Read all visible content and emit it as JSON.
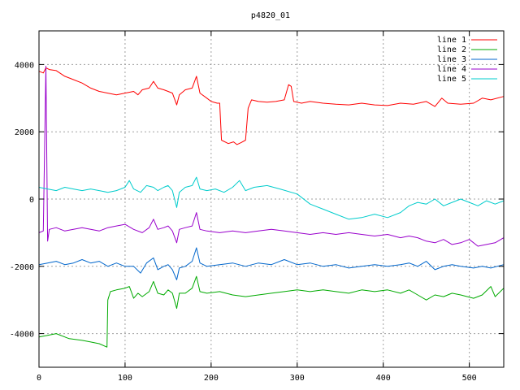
{
  "chart_data": {
    "type": "line",
    "title": "p4820_01",
    "xlabel": "",
    "ylabel": "",
    "xlim": [
      0,
      540
    ],
    "ylim": [
      -5000,
      5000
    ],
    "x_ticks": [
      0,
      100,
      200,
      300,
      400,
      500
    ],
    "y_ticks": [
      -4000,
      -2000,
      0,
      2000,
      4000
    ],
    "grid": true,
    "legend_position": "top-right",
    "series": [
      {
        "name": "line 1",
        "color": "#ff0000",
        "points": [
          [
            0,
            3800
          ],
          [
            5,
            3750
          ],
          [
            8,
            3900
          ],
          [
            12,
            3850
          ],
          [
            20,
            3820
          ],
          [
            30,
            3650
          ],
          [
            40,
            3550
          ],
          [
            50,
            3450
          ],
          [
            60,
            3300
          ],
          [
            70,
            3200
          ],
          [
            80,
            3150
          ],
          [
            90,
            3100
          ],
          [
            100,
            3150
          ],
          [
            110,
            3200
          ],
          [
            115,
            3100
          ],
          [
            120,
            3250
          ],
          [
            128,
            3300
          ],
          [
            133,
            3500
          ],
          [
            138,
            3300
          ],
          [
            145,
            3250
          ],
          [
            150,
            3200
          ],
          [
            155,
            3150
          ],
          [
            160,
            2800
          ],
          [
            163,
            3100
          ],
          [
            170,
            3250
          ],
          [
            178,
            3300
          ],
          [
            183,
            3650
          ],
          [
            187,
            3150
          ],
          [
            195,
            3000
          ],
          [
            200,
            2900
          ],
          [
            207,
            2850
          ],
          [
            210,
            2850
          ],
          [
            212,
            1750
          ],
          [
            220,
            1650
          ],
          [
            226,
            1700
          ],
          [
            230,
            1620
          ],
          [
            235,
            1680
          ],
          [
            240,
            1750
          ],
          [
            243,
            2700
          ],
          [
            247,
            2950
          ],
          [
            255,
            2900
          ],
          [
            265,
            2880
          ],
          [
            275,
            2900
          ],
          [
            285,
            2950
          ],
          [
            290,
            3400
          ],
          [
            293,
            3350
          ],
          [
            296,
            2900
          ],
          [
            305,
            2850
          ],
          [
            315,
            2900
          ],
          [
            330,
            2850
          ],
          [
            345,
            2820
          ],
          [
            360,
            2800
          ],
          [
            375,
            2850
          ],
          [
            390,
            2800
          ],
          [
            405,
            2780
          ],
          [
            420,
            2850
          ],
          [
            435,
            2820
          ],
          [
            450,
            2900
          ],
          [
            460,
            2750
          ],
          [
            468,
            3000
          ],
          [
            475,
            2850
          ],
          [
            490,
            2820
          ],
          [
            505,
            2850
          ],
          [
            515,
            3000
          ],
          [
            525,
            2950
          ],
          [
            540,
            3050
          ]
        ]
      },
      {
        "name": "line 2",
        "color": "#00aa00",
        "points": [
          [
            0,
            -4100
          ],
          [
            10,
            -4050
          ],
          [
            20,
            -4000
          ],
          [
            35,
            -4150
          ],
          [
            50,
            -4200
          ],
          [
            60,
            -4250
          ],
          [
            70,
            -4300
          ],
          [
            79,
            -4400
          ],
          [
            80,
            -3000
          ],
          [
            83,
            -2750
          ],
          [
            90,
            -2700
          ],
          [
            100,
            -2650
          ],
          [
            105,
            -2600
          ],
          [
            110,
            -2950
          ],
          [
            115,
            -2800
          ],
          [
            120,
            -2900
          ],
          [
            128,
            -2750
          ],
          [
            133,
            -2450
          ],
          [
            138,
            -2800
          ],
          [
            145,
            -2850
          ],
          [
            150,
            -2700
          ],
          [
            155,
            -2800
          ],
          [
            160,
            -3250
          ],
          [
            163,
            -2800
          ],
          [
            170,
            -2800
          ],
          [
            178,
            -2650
          ],
          [
            183,
            -2300
          ],
          [
            187,
            -2750
          ],
          [
            195,
            -2800
          ],
          [
            210,
            -2750
          ],
          [
            225,
            -2850
          ],
          [
            240,
            -2900
          ],
          [
            255,
            -2850
          ],
          [
            270,
            -2800
          ],
          [
            285,
            -2750
          ],
          [
            300,
            -2700
          ],
          [
            315,
            -2750
          ],
          [
            330,
            -2700
          ],
          [
            345,
            -2750
          ],
          [
            360,
            -2800
          ],
          [
            375,
            -2700
          ],
          [
            390,
            -2750
          ],
          [
            405,
            -2700
          ],
          [
            420,
            -2800
          ],
          [
            430,
            -2700
          ],
          [
            440,
            -2850
          ],
          [
            450,
            -3000
          ],
          [
            460,
            -2850
          ],
          [
            470,
            -2900
          ],
          [
            480,
            -2800
          ],
          [
            490,
            -2850
          ],
          [
            505,
            -2950
          ],
          [
            515,
            -2850
          ],
          [
            525,
            -2600
          ],
          [
            530,
            -2900
          ],
          [
            540,
            -2650
          ]
        ]
      },
      {
        "name": "line 3",
        "color": "#0066cc",
        "points": [
          [
            0,
            -1950
          ],
          [
            10,
            -1900
          ],
          [
            20,
            -1850
          ],
          [
            30,
            -1950
          ],
          [
            40,
            -1900
          ],
          [
            50,
            -1800
          ],
          [
            60,
            -1900
          ],
          [
            70,
            -1850
          ],
          [
            80,
            -2000
          ],
          [
            90,
            -1900
          ],
          [
            100,
            -2000
          ],
          [
            110,
            -2000
          ],
          [
            118,
            -2200
          ],
          [
            125,
            -1900
          ],
          [
            133,
            -1750
          ],
          [
            138,
            -2100
          ],
          [
            145,
            -2000
          ],
          [
            150,
            -1950
          ],
          [
            155,
            -2100
          ],
          [
            160,
            -2400
          ],
          [
            163,
            -2050
          ],
          [
            170,
            -2000
          ],
          [
            178,
            -1850
          ],
          [
            183,
            -1450
          ],
          [
            187,
            -1900
          ],
          [
            195,
            -2000
          ],
          [
            210,
            -1950
          ],
          [
            225,
            -1900
          ],
          [
            240,
            -2000
          ],
          [
            255,
            -1900
          ],
          [
            270,
            -1950
          ],
          [
            285,
            -1800
          ],
          [
            300,
            -1950
          ],
          [
            315,
            -1900
          ],
          [
            330,
            -2000
          ],
          [
            345,
            -1950
          ],
          [
            360,
            -2050
          ],
          [
            375,
            -2000
          ],
          [
            390,
            -1950
          ],
          [
            405,
            -2000
          ],
          [
            420,
            -1950
          ],
          [
            430,
            -1900
          ],
          [
            440,
            -2000
          ],
          [
            450,
            -1850
          ],
          [
            460,
            -2100
          ],
          [
            470,
            -2000
          ],
          [
            480,
            -1950
          ],
          [
            490,
            -2000
          ],
          [
            505,
            -2050
          ],
          [
            515,
            -2000
          ],
          [
            525,
            -2050
          ],
          [
            540,
            -1950
          ]
        ]
      },
      {
        "name": "line 4",
        "color": "#9900cc",
        "points": [
          [
            0,
            -1000
          ],
          [
            5,
            -950
          ],
          [
            8,
            3950
          ],
          [
            10,
            -1250
          ],
          [
            12,
            -900
          ],
          [
            20,
            -850
          ],
          [
            30,
            -950
          ],
          [
            40,
            -900
          ],
          [
            50,
            -850
          ],
          [
            60,
            -900
          ],
          [
            70,
            -950
          ],
          [
            80,
            -850
          ],
          [
            90,
            -800
          ],
          [
            100,
            -750
          ],
          [
            110,
            -900
          ],
          [
            120,
            -1000
          ],
          [
            128,
            -850
          ],
          [
            133,
            -600
          ],
          [
            138,
            -900
          ],
          [
            145,
            -850
          ],
          [
            150,
            -800
          ],
          [
            155,
            -950
          ],
          [
            160,
            -1300
          ],
          [
            163,
            -900
          ],
          [
            170,
            -850
          ],
          [
            178,
            -800
          ],
          [
            183,
            -400
          ],
          [
            187,
            -900
          ],
          [
            195,
            -950
          ],
          [
            210,
            -1000
          ],
          [
            225,
            -950
          ],
          [
            240,
            -1000
          ],
          [
            255,
            -950
          ],
          [
            270,
            -900
          ],
          [
            285,
            -950
          ],
          [
            300,
            -1000
          ],
          [
            315,
            -1050
          ],
          [
            330,
            -1000
          ],
          [
            345,
            -1050
          ],
          [
            360,
            -1000
          ],
          [
            375,
            -1050
          ],
          [
            390,
            -1100
          ],
          [
            405,
            -1050
          ],
          [
            420,
            -1150
          ],
          [
            430,
            -1100
          ],
          [
            440,
            -1150
          ],
          [
            450,
            -1250
          ],
          [
            460,
            -1300
          ],
          [
            470,
            -1200
          ],
          [
            480,
            -1350
          ],
          [
            490,
            -1300
          ],
          [
            500,
            -1200
          ],
          [
            510,
            -1400
          ],
          [
            520,
            -1350
          ],
          [
            530,
            -1300
          ],
          [
            540,
            -1150
          ]
        ]
      },
      {
        "name": "line 5",
        "color": "#00cccc",
        "points": [
          [
            0,
            350
          ],
          [
            10,
            300
          ],
          [
            20,
            250
          ],
          [
            30,
            350
          ],
          [
            40,
            300
          ],
          [
            50,
            250
          ],
          [
            60,
            300
          ],
          [
            70,
            250
          ],
          [
            80,
            200
          ],
          [
            90,
            250
          ],
          [
            100,
            350
          ],
          [
            105,
            550
          ],
          [
            110,
            300
          ],
          [
            118,
            200
          ],
          [
            125,
            400
          ],
          [
            133,
            350
          ],
          [
            138,
            250
          ],
          [
            145,
            350
          ],
          [
            150,
            400
          ],
          [
            155,
            250
          ],
          [
            160,
            -250
          ],
          [
            163,
            200
          ],
          [
            170,
            350
          ],
          [
            178,
            400
          ],
          [
            183,
            650
          ],
          [
            187,
            300
          ],
          [
            195,
            250
          ],
          [
            205,
            300
          ],
          [
            215,
            200
          ],
          [
            225,
            350
          ],
          [
            233,
            550
          ],
          [
            240,
            250
          ],
          [
            250,
            350
          ],
          [
            265,
            400
          ],
          [
            280,
            300
          ],
          [
            300,
            150
          ],
          [
            315,
            -150
          ],
          [
            330,
            -300
          ],
          [
            345,
            -450
          ],
          [
            360,
            -600
          ],
          [
            375,
            -550
          ],
          [
            390,
            -450
          ],
          [
            405,
            -550
          ],
          [
            420,
            -400
          ],
          [
            430,
            -200
          ],
          [
            440,
            -100
          ],
          [
            450,
            -150
          ],
          [
            460,
            0
          ],
          [
            470,
            -200
          ],
          [
            480,
            -100
          ],
          [
            490,
            0
          ],
          [
            500,
            -100
          ],
          [
            510,
            -200
          ],
          [
            520,
            -50
          ],
          [
            530,
            -150
          ],
          [
            540,
            -50
          ]
        ]
      }
    ]
  }
}
